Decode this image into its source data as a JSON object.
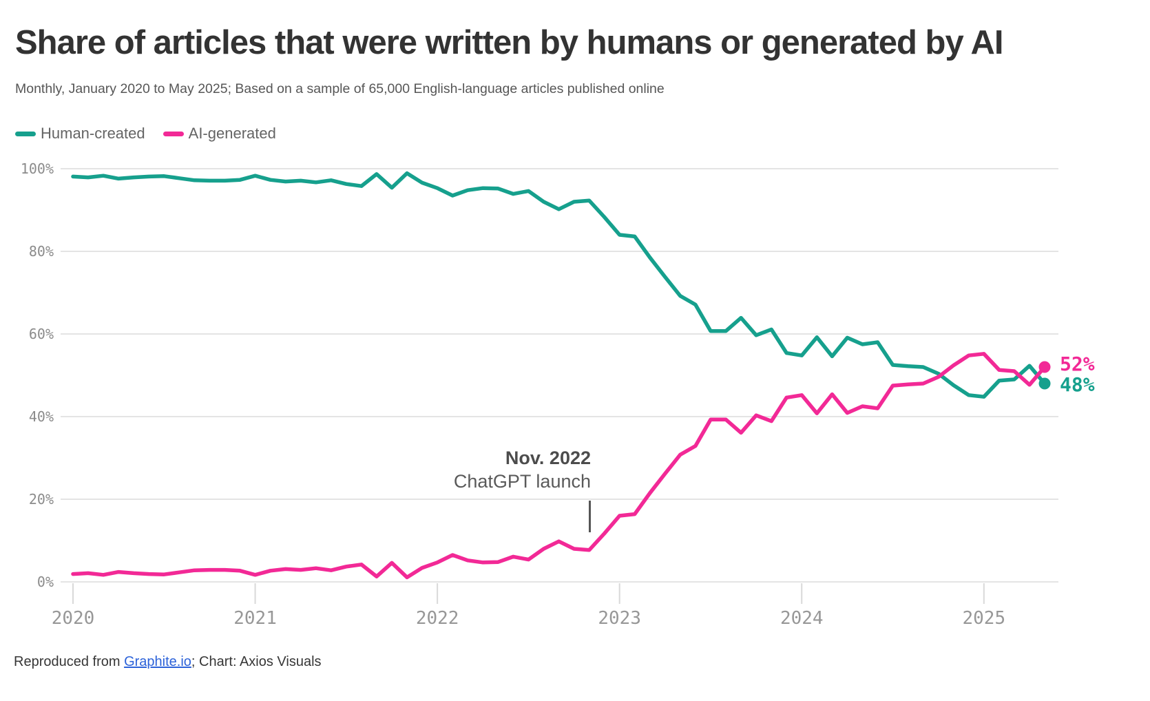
{
  "title": "Share of articles that were written by humans or generated by AI",
  "subtitle": "Monthly, January 2020 to May 2025; Based on a sample of 65,000 English-language articles published online",
  "legend": {
    "items": [
      {
        "label": "Human-created",
        "color": "#16A08D"
      },
      {
        "label": "AI-generated",
        "color": "#F22996"
      }
    ]
  },
  "annotation": {
    "line1": "Nov. 2022",
    "line2": "ChatGPT launch"
  },
  "end_labels": {
    "ai": {
      "text": "52%",
      "color": "#F22996"
    },
    "human": {
      "text": "48%",
      "color": "#16A08D"
    }
  },
  "footer": {
    "prefix": "Reproduced from ",
    "link": "Graphite.io",
    "suffix": "; Chart: Axios Visuals"
  },
  "colors": {
    "human_line": "#16A08D",
    "ai_line": "#F22996",
    "gridline": "#E4E4E4",
    "axis_tick": "#D9D9D9",
    "y_label": "#8B8B8B",
    "x_label": "#979797",
    "link_blue": "#2C62D9"
  },
  "chart_data": {
    "type": "line",
    "title": "Share of articles that were written by humans or generated by AI",
    "x_interval": "monthly",
    "x_start": "2020-01",
    "x_end": "2025-05",
    "x_tick_labels": [
      "2020",
      "2021",
      "2022",
      "2023",
      "2024",
      "2025"
    ],
    "y_tick_labels": [
      "0%",
      "20%",
      "40%",
      "60%",
      "80%",
      "100%"
    ],
    "ylim": [
      0,
      100
    ],
    "grid": "horizontal-only",
    "legend_position": "top-left",
    "months": [
      "2020-01",
      "2020-02",
      "2020-03",
      "2020-04",
      "2020-05",
      "2020-06",
      "2020-07",
      "2020-08",
      "2020-09",
      "2020-10",
      "2020-11",
      "2020-12",
      "2021-01",
      "2021-02",
      "2021-03",
      "2021-04",
      "2021-05",
      "2021-06",
      "2021-07",
      "2021-08",
      "2021-09",
      "2021-10",
      "2021-11",
      "2021-12",
      "2022-01",
      "2022-02",
      "2022-03",
      "2022-04",
      "2022-05",
      "2022-06",
      "2022-07",
      "2022-08",
      "2022-09",
      "2022-10",
      "2022-11",
      "2022-12",
      "2023-01",
      "2023-02",
      "2023-03",
      "2023-04",
      "2023-05",
      "2023-06",
      "2023-07",
      "2023-08",
      "2023-09",
      "2023-10",
      "2023-11",
      "2023-12",
      "2024-01",
      "2024-02",
      "2024-03",
      "2024-04",
      "2024-05",
      "2024-06",
      "2024-07",
      "2024-08",
      "2024-09",
      "2024-10",
      "2024-11",
      "2024-12",
      "2025-01",
      "2025-02",
      "2025-03",
      "2025-04",
      "2025-05"
    ],
    "series": [
      {
        "name": "Human-created",
        "color": "#16A08D",
        "end_label": "48%",
        "values": [
          98.1,
          97.9,
          98.3,
          97.6,
          97.9,
          98.1,
          98.2,
          97.7,
          97.2,
          97.1,
          97.1,
          97.3,
          98.3,
          97.3,
          96.9,
          97.1,
          96.7,
          97.2,
          96.3,
          95.8,
          98.7,
          95.4,
          98.9,
          96.6,
          95.3,
          93.5,
          94.8,
          95.3,
          95.2,
          93.9,
          94.6,
          92.0,
          90.2,
          92.0,
          92.3,
          88.3,
          84.0,
          83.6,
          78.5,
          73.8,
          69.2,
          67.1,
          60.7,
          60.7,
          63.9,
          59.7,
          61.1,
          55.4,
          54.8,
          59.2,
          54.6,
          59.1,
          57.5,
          58.0,
          52.5,
          52.2,
          52.0,
          50.4,
          47.6,
          45.2,
          44.8,
          48.7,
          49.0,
          52.3,
          48.0
        ]
      },
      {
        "name": "AI-generated",
        "color": "#F22996",
        "end_label": "52%",
        "values": [
          1.9,
          2.1,
          1.7,
          2.4,
          2.1,
          1.9,
          1.8,
          2.3,
          2.8,
          2.9,
          2.9,
          2.7,
          1.7,
          2.7,
          3.1,
          2.9,
          3.3,
          2.8,
          3.7,
          4.2,
          1.3,
          4.6,
          1.1,
          3.4,
          4.7,
          6.5,
          5.2,
          4.7,
          4.8,
          6.1,
          5.4,
          8.0,
          9.8,
          8.0,
          7.7,
          11.7,
          16.0,
          16.4,
          21.5,
          26.2,
          30.8,
          32.9,
          39.3,
          39.3,
          36.1,
          40.3,
          38.9,
          44.6,
          45.2,
          40.8,
          45.4,
          40.9,
          42.5,
          42.0,
          47.5,
          47.8,
          48.0,
          49.6,
          52.4,
          54.8,
          55.2,
          51.3,
          51.0,
          47.7,
          52.0
        ]
      }
    ],
    "annotation": {
      "x": "2022-11",
      "label": "Nov. 2022 ChatGPT launch"
    }
  }
}
